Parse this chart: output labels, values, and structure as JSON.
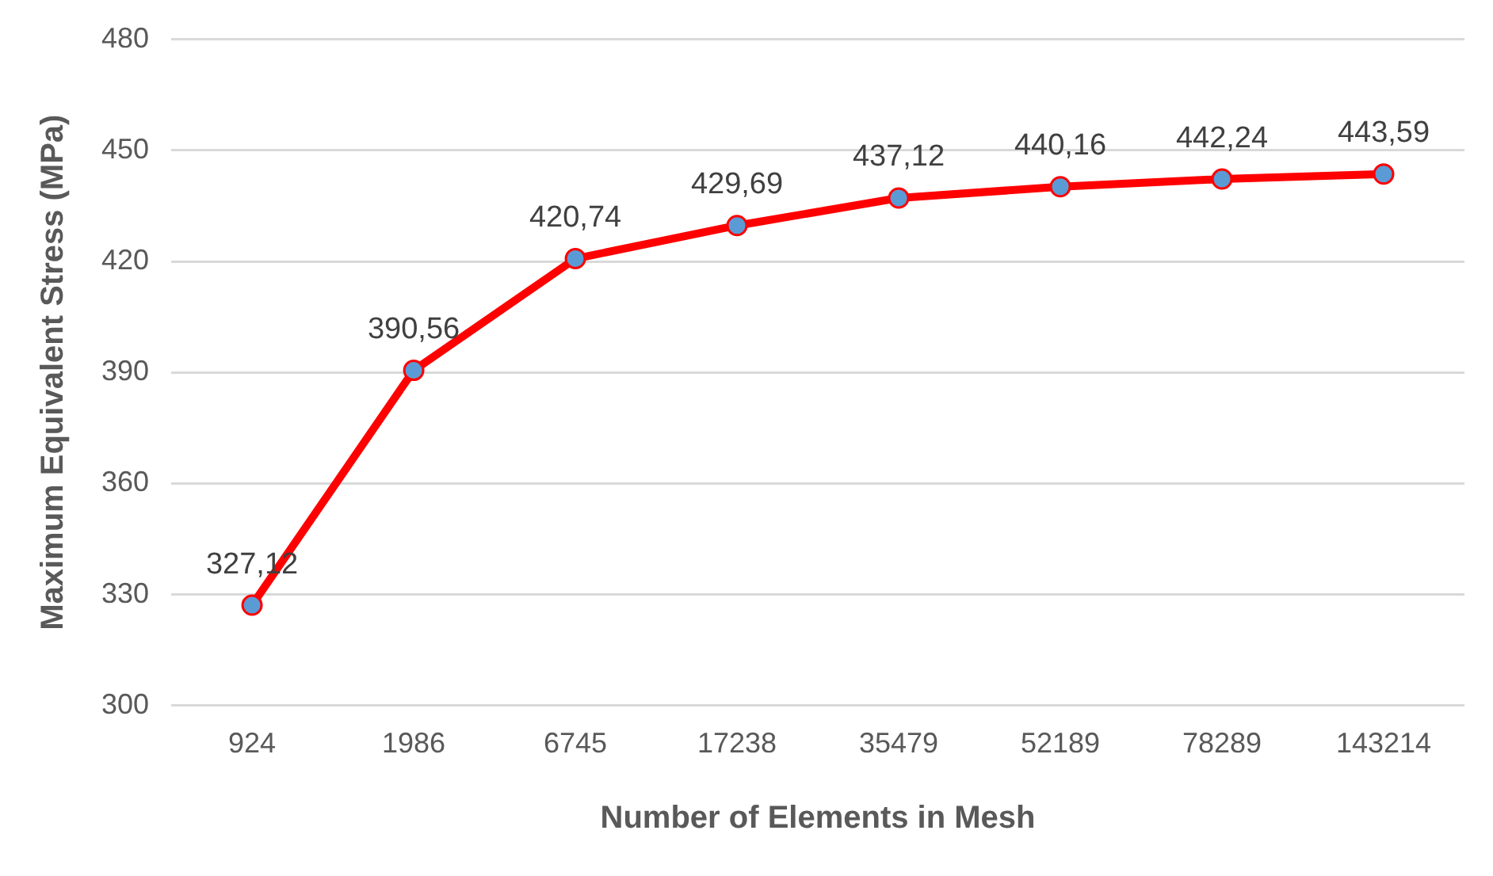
{
  "chart_data": {
    "type": "line",
    "xlabel": "Number of Elements in Mesh",
    "ylabel": "Maximum Equivalent Stress (MPa)",
    "categories": [
      "924",
      "1986",
      "6745",
      "17238",
      "35479",
      "52189",
      "78289",
      "143214"
    ],
    "series": [
      {
        "color": "#ff0000",
        "values": [
          327.12,
          390.56,
          420.74,
          429.69,
          437.12,
          440.16,
          442.24,
          443.59
        ],
        "value_labels": [
          "327,12",
          "390,56",
          "420,74",
          "429,69",
          "437,12",
          "440,16",
          "442,24",
          "443,59"
        ]
      }
    ],
    "ylim": [
      300,
      480
    ],
    "yticks": [
      300,
      330,
      360,
      390,
      420,
      450,
      480
    ],
    "grid": "y",
    "legend": false,
    "marker": "circle",
    "line_style": "solid"
  }
}
